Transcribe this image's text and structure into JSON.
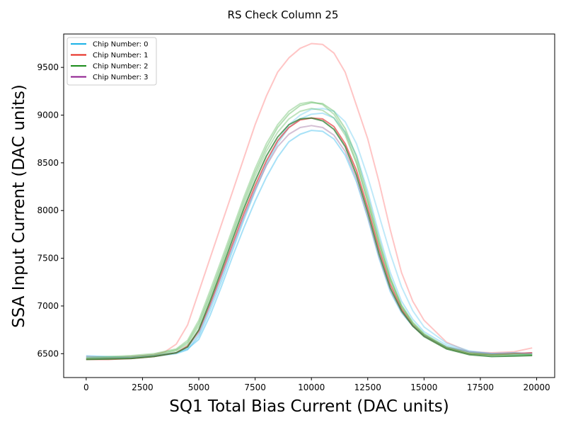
{
  "chart_data": {
    "type": "line",
    "title": "RS Check Column 25",
    "xlabel": "SQ1 Total Bias Current (DAC units)",
    "ylabel": "SSA Input Current (DAC units)",
    "xlim": [
      -1000,
      20800
    ],
    "ylim": [
      6250,
      9850
    ],
    "xticks": [
      0,
      2500,
      5000,
      7500,
      10000,
      12500,
      15000,
      17500,
      20000
    ],
    "yticks": [
      6500,
      7000,
      7500,
      8000,
      8500,
      9000,
      9500
    ],
    "grid": false,
    "legend_position": "top-left",
    "legend": [
      {
        "label": "Chip Number: 0",
        "color": "#1ab2e6"
      },
      {
        "label": "Chip Number: 1",
        "color": "#e6261a"
      },
      {
        "label": "Chip Number: 2",
        "color": "#1a8c1a"
      },
      {
        "label": "Chip Number: 3",
        "color": "#8c1a8c"
      }
    ],
    "series": [
      {
        "chip": 1,
        "color": "#ff7f7f",
        "opacity": 0.45,
        "x": [
          0,
          1000,
          2000,
          3000,
          3500,
          4000,
          4500,
          5000,
          5500,
          6000,
          6500,
          7000,
          7500,
          8000,
          8500,
          9000,
          9500,
          10000,
          10500,
          11000,
          11500,
          12000,
          12500,
          13000,
          13500,
          14000,
          14500,
          15000,
          16000,
          17000,
          18000,
          19000,
          19800
        ],
        "y": [
          6450,
          6455,
          6470,
          6490,
          6520,
          6600,
          6800,
          7150,
          7500,
          7850,
          8200,
          8550,
          8900,
          9200,
          9450,
          9600,
          9700,
          9750,
          9740,
          9650,
          9450,
          9100,
          8750,
          8300,
          7800,
          7350,
          7050,
          6850,
          6620,
          6520,
          6510,
          6520,
          6560
        ]
      },
      {
        "chip": 0,
        "color": "#5fc8f0",
        "opacity": 0.55,
        "x": [
          0,
          1000,
          2000,
          3000,
          4000,
          4500,
          5000,
          5500,
          6000,
          6500,
          7000,
          7500,
          8000,
          8500,
          9000,
          9500,
          10000,
          10500,
          11000,
          11500,
          12000,
          12500,
          13000,
          13500,
          14000,
          14500,
          15000,
          16000,
          17000,
          18000,
          19000,
          19800
        ],
        "y": [
          6470,
          6465,
          6460,
          6480,
          6510,
          6550,
          6650,
          6900,
          7200,
          7520,
          7820,
          8100,
          8350,
          8560,
          8720,
          8800,
          8840,
          8830,
          8750,
          8580,
          8300,
          7920,
          7500,
          7150,
          6930,
          6790,
          6690,
          6570,
          6520,
          6500,
          6510,
          6500
        ]
      },
      {
        "chip": 0,
        "color": "#5fc8f0",
        "opacity": 0.45,
        "x": [
          0,
          1000,
          2000,
          3000,
          4000,
          4500,
          5000,
          5500,
          6000,
          6500,
          7000,
          7500,
          8000,
          8500,
          9000,
          9500,
          10000,
          10500,
          11000,
          11500,
          12000,
          12500,
          13000,
          13500,
          14000,
          14500,
          15000,
          16000,
          17000,
          18000,
          19000,
          19800
        ],
        "y": [
          6460,
          6450,
          6455,
          6470,
          6500,
          6540,
          6680,
          6950,
          7250,
          7580,
          7900,
          8200,
          8480,
          8700,
          8870,
          8960,
          9010,
          9020,
          8970,
          8820,
          8580,
          8200,
          7750,
          7350,
          7050,
          6860,
          6730,
          6590,
          6520,
          6500,
          6490,
          6500
        ]
      },
      {
        "chip": 0,
        "color": "#5fc8f0",
        "opacity": 0.4,
        "x": [
          0,
          1000,
          2000,
          3000,
          4000,
          4500,
          5000,
          5500,
          6000,
          6500,
          7000,
          7500,
          8000,
          8500,
          9000,
          9500,
          10000,
          10500,
          11000,
          11500,
          12000,
          12500,
          13000,
          13500,
          14000,
          14500,
          15000,
          16000,
          17000,
          18000,
          19000,
          19800
        ],
        "y": [
          6480,
          6470,
          6460,
          6475,
          6505,
          6545,
          6700,
          6980,
          7280,
          7600,
          7920,
          8220,
          8500,
          8730,
          8900,
          9000,
          9060,
          9070,
          9040,
          8930,
          8700,
          8350,
          7950,
          7550,
          7200,
          6950,
          6780,
          6610,
          6530,
          6500,
          6500,
          6510
        ]
      },
      {
        "chip": 1,
        "color": "#e64040",
        "opacity": 0.7,
        "x": [
          0,
          1000,
          2000,
          3000,
          4000,
          4500,
          5000,
          5500,
          6000,
          6500,
          7000,
          7500,
          8000,
          8500,
          9000,
          9500,
          10000,
          10500,
          11000,
          11500,
          12000,
          12500,
          13000,
          13500,
          14000,
          14500,
          15000,
          16000,
          17000,
          18000,
          19000,
          19800
        ],
        "y": [
          6440,
          6440,
          6450,
          6470,
          6510,
          6580,
          6740,
          7020,
          7330,
          7650,
          7970,
          8260,
          8520,
          8730,
          8870,
          8950,
          8970,
          8960,
          8880,
          8700,
          8420,
          8030,
          7600,
          7230,
          6970,
          6800,
          6690,
          6560,
          6500,
          6490,
          6500,
          6510
        ]
      },
      {
        "chip": 3,
        "color": "#b08ab0",
        "opacity": 0.55,
        "x": [
          0,
          1000,
          2000,
          3000,
          4000,
          4500,
          5000,
          5500,
          6000,
          6500,
          7000,
          7500,
          8000,
          8500,
          9000,
          9500,
          10000,
          10500,
          11000,
          11500,
          12000,
          12500,
          13000,
          13500,
          14000,
          14500,
          15000,
          16000,
          17000,
          18000,
          19000,
          19800
        ],
        "y": [
          6470,
          6460,
          6465,
          6480,
          6510,
          6570,
          6720,
          7000,
          7310,
          7630,
          7940,
          8220,
          8470,
          8670,
          8800,
          8870,
          8890,
          8870,
          8790,
          8620,
          8330,
          7940,
          7520,
          7170,
          6940,
          6790,
          6690,
          6570,
          6520,
          6500,
          6510,
          6500
        ]
      },
      {
        "chip": 2,
        "color": "#5cb85c",
        "opacity": 0.45,
        "x": [
          0,
          1000,
          2000,
          3000,
          4000,
          4500,
          5000,
          5500,
          6000,
          6500,
          7000,
          7500,
          8000,
          8500,
          9000,
          9500,
          10000,
          10500,
          11000,
          11500,
          12000,
          12500,
          13000,
          13500,
          14000,
          14500,
          15000,
          16000,
          17000,
          18000,
          19000,
          19800
        ],
        "y": [
          6450,
          6460,
          6470,
          6490,
          6540,
          6620,
          6820,
          7120,
          7440,
          7770,
          8100,
          8400,
          8660,
          8870,
          9010,
          9100,
          9130,
          9120,
          9040,
          8860,
          8560,
          8150,
          7700,
          7300,
          7010,
          6830,
          6710,
          6570,
          6510,
          6490,
          6500,
          6490
        ]
      },
      {
        "chip": 2,
        "color": "#5cb85c",
        "opacity": 0.4,
        "x": [
          0,
          1000,
          2000,
          3000,
          4000,
          4500,
          5000,
          5500,
          6000,
          6500,
          7000,
          7500,
          8000,
          8500,
          9000,
          9500,
          10000,
          10500,
          11000,
          11500,
          12000,
          12500,
          13000,
          13500,
          14000,
          14500,
          15000,
          16000,
          17000,
          18000,
          19000,
          19800
        ],
        "y": [
          6440,
          6445,
          6455,
          6480,
          6530,
          6600,
          6790,
          7090,
          7410,
          7740,
          8060,
          8360,
          8620,
          8820,
          8960,
          9040,
          9070,
          9050,
          8970,
          8790,
          8490,
          8090,
          7650,
          7270,
          6990,
          6810,
          6700,
          6560,
          6500,
          6480,
          6490,
          6490
        ]
      },
      {
        "chip": 2,
        "color": "#5cb85c",
        "opacity": 0.4,
        "x": [
          0,
          1000,
          2000,
          3000,
          4000,
          4500,
          5000,
          5500,
          6000,
          6500,
          7000,
          7500,
          8000,
          8500,
          9000,
          9500,
          10000,
          10500,
          11000,
          11500,
          12000,
          12500,
          13000,
          13500,
          14000,
          14500,
          15000,
          16000,
          17000,
          18000,
          19000,
          19800
        ],
        "y": [
          6460,
          6470,
          6480,
          6500,
          6550,
          6640,
          6850,
          7160,
          7480,
          7810,
          8140,
          8440,
          8700,
          8900,
          9040,
          9120,
          9140,
          9110,
          9010,
          8820,
          8510,
          8100,
          7660,
          7280,
          7000,
          6820,
          6700,
          6560,
          6500,
          6490,
          6480,
          6490
        ]
      },
      {
        "chip": 2,
        "color": "#2e7d32",
        "opacity": 0.75,
        "x": [
          0,
          1000,
          2000,
          3000,
          4000,
          4500,
          5000,
          5500,
          6000,
          6500,
          7000,
          7500,
          8000,
          8500,
          9000,
          9500,
          10000,
          10500,
          11000,
          11500,
          12000,
          12500,
          13000,
          13500,
          14000,
          14500,
          15000,
          16000,
          17000,
          18000,
          19000,
          19800
        ],
        "y": [
          6440,
          6445,
          6450,
          6470,
          6510,
          6570,
          6750,
          7050,
          7370,
          7700,
          8020,
          8310,
          8570,
          8770,
          8900,
          8960,
          8970,
          8940,
          8850,
          8670,
          8370,
          7980,
          7550,
          7190,
          6950,
          6790,
          6680,
          6550,
          6490,
          6470,
          6475,
          6480
        ]
      }
    ]
  }
}
